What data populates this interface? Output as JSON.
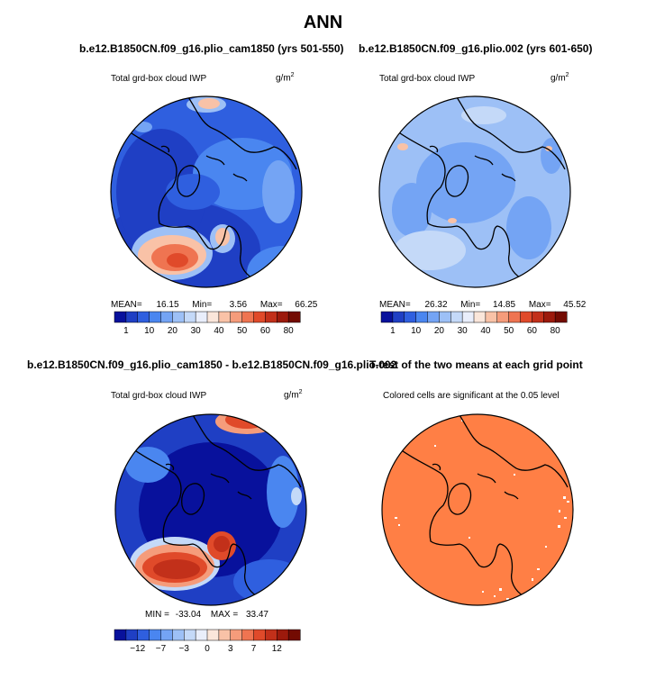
{
  "page": {
    "title": "ANN"
  },
  "panels": [
    {
      "id": "p1",
      "case_title": "b.e12.B1850CN.f09_g16.plio_cam1850 (yrs 501-550)",
      "var_label": "Total grd-box cloud IWP",
      "units_base": "g/m",
      "units_sup": "2",
      "mean_label": "MEAN=",
      "mean": "16.15",
      "min_label": "Min=",
      "min": "3.56",
      "max_label": "Max=",
      "max": "66.25"
    },
    {
      "id": "p2",
      "case_title": "b.e12.B1850CN.f09_g16.plio.002 (yrs 601-650)",
      "var_label": "Total grd-box cloud IWP",
      "units_base": "g/m",
      "units_sup": "2",
      "mean_label": "MEAN=",
      "mean": "26.32",
      "min_label": "Min=",
      "min": "14.85",
      "max_label": "Max=",
      "max": "45.52"
    },
    {
      "id": "p3",
      "case_title": "b.e12.B1850CN.f09_g16.plio_cam1850 - b.e12.B1850CN.f09_g16.plio.002",
      "var_label": "Total grd-box cloud IWP",
      "units_base": "g/m",
      "units_sup": "2",
      "min_label": "MIN =",
      "min": "-33.04",
      "max_label": "MAX =",
      "max": "33.47"
    },
    {
      "id": "p4",
      "case_title": "T-test of the two means at each grid point",
      "var_label": "Colored cells are significant at the 0.05 level"
    }
  ],
  "chart_data": [
    {
      "type": "heatmap",
      "projection": "north-polar-stereographic",
      "title": "b.e12.B1850CN.f09_g16.plio_cam1850 (yrs 501-550)",
      "variable": "Total grd-box cloud IWP",
      "units": "g/m2",
      "mean": 16.15,
      "min": 3.56,
      "max": 66.25,
      "colorbar": {
        "labels": [
          "1",
          "10",
          "20",
          "30",
          "40",
          "50",
          "60",
          "80"
        ],
        "colors": [
          "#08119c",
          "#1f3fc4",
          "#2f5fdf",
          "#4a86f0",
          "#74a4f4",
          "#9dc0f6",
          "#c4d9f8",
          "#e9eefb",
          "#fae6da",
          "#f9c2a7",
          "#f59c7b",
          "#ef7451",
          "#e04a2a",
          "#c2301a",
          "#9c1a0c",
          "#730b02"
        ]
      }
    },
    {
      "type": "heatmap",
      "projection": "north-polar-stereographic",
      "title": "b.e12.B1850CN.f09_g16.plio.002 (yrs 601-650)",
      "variable": "Total grd-box cloud IWP",
      "units": "g/m2",
      "mean": 26.32,
      "min": 14.85,
      "max": 45.52,
      "colorbar": {
        "labels": [
          "1",
          "10",
          "20",
          "30",
          "40",
          "50",
          "60",
          "80"
        ],
        "colors": [
          "#08119c",
          "#1f3fc4",
          "#2f5fdf",
          "#4a86f0",
          "#74a4f4",
          "#9dc0f6",
          "#c4d9f8",
          "#e9eefb",
          "#fae6da",
          "#f9c2a7",
          "#f59c7b",
          "#ef7451",
          "#e04a2a",
          "#c2301a",
          "#9c1a0c",
          "#730b02"
        ]
      }
    },
    {
      "type": "heatmap",
      "projection": "north-polar-stereographic",
      "title": "b.e12.B1850CN.f09_g16.plio_cam1850 - b.e12.B1850CN.f09_g16.plio.002",
      "variable": "Total grd-box cloud IWP",
      "units": "g/m2",
      "min": -33.04,
      "max": 33.47,
      "colorbar": {
        "labels": [
          "-12",
          "-7",
          "-3",
          "0",
          "3",
          "7",
          "12"
        ],
        "colors": [
          "#08119c",
          "#1f3fc4",
          "#2f5fdf",
          "#4a86f0",
          "#74a4f4",
          "#9dc0f6",
          "#c4d9f8",
          "#e9eefb",
          "#fae6da",
          "#f9c2a7",
          "#f59c7b",
          "#ef7451",
          "#e04a2a",
          "#c2301a",
          "#9c1a0c",
          "#730b02"
        ]
      }
    },
    {
      "type": "heatmap",
      "projection": "north-polar-stereographic",
      "title": "T-test of the two means at each grid point",
      "note": "Colored cells are significant at the 0.05 level",
      "significant_color": "#ff7f45"
    }
  ],
  "colors": {
    "coastline": "#000000",
    "p1_base": "#2f5fdf",
    "p2_base": "#9dc0f6",
    "p3_base": "#1f3fc4",
    "p4_base": "#ff7f45"
  }
}
